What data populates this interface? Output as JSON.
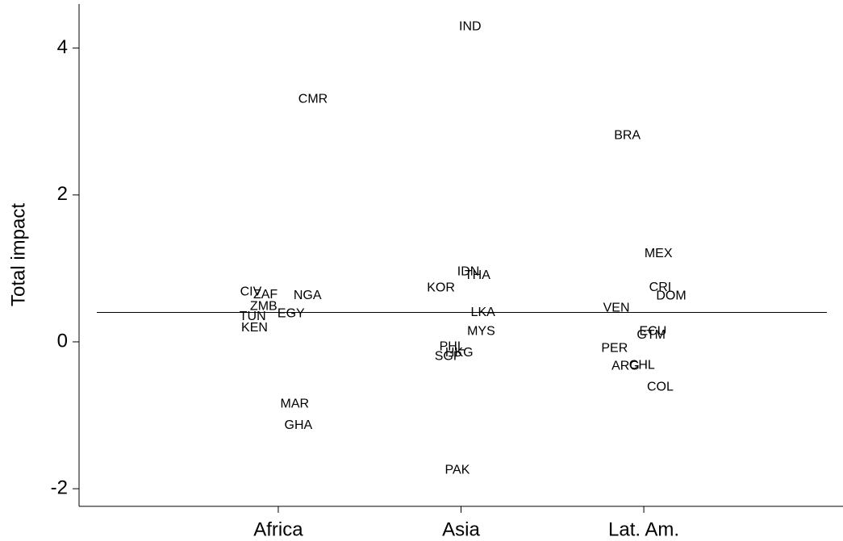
{
  "chart_data": {
    "type": "scatter",
    "ylabel": "Total impact",
    "labels": [
      "CMR",
      "CIV",
      "ZAF",
      "NGA",
      "ZMB",
      "EGY",
      "TUN",
      "KEN",
      "MAR",
      "GHA",
      "IND",
      "IDN",
      "THA",
      "KOR",
      "LKA",
      "MYS",
      "PHL",
      "HKG",
      "SGP",
      "PAK",
      "BRA",
      "MEX",
      "CRI",
      "DOM",
      "VEN",
      "ECU",
      "GTM",
      "PER",
      "ARG",
      "CHL",
      "COL"
    ],
    "x": [
      1.19,
      0.85,
      0.93,
      1.16,
      0.92,
      1.07,
      0.86,
      0.87,
      1.09,
      1.11,
      2.05,
      2.04,
      2.09,
      1.89,
      2.12,
      2.11,
      1.95,
      1.99,
      1.93,
      1.98,
      2.91,
      3.08,
      3.09,
      3.15,
      2.85,
      3.05,
      3.04,
      2.84,
      2.9,
      2.99,
      3.09
    ],
    "y": [
      3.3,
      0.68,
      0.64,
      0.63,
      0.48,
      0.38,
      0.34,
      0.19,
      -0.85,
      -1.14,
      4.29,
      0.95,
      0.9,
      0.73,
      0.4,
      0.14,
      -0.07,
      -0.15,
      -0.2,
      -1.75,
      2.81,
      1.2,
      0.74,
      0.62,
      0.46,
      0.14,
      0.09,
      -0.09,
      -0.33,
      -0.32,
      -0.62
    ],
    "color": "#000000",
    "xlim": [
      -0.09,
      4.09
    ],
    "ylim": [
      -2.24,
      4.6
    ],
    "xticks": [
      {
        "value": 1,
        "label": "Africa"
      },
      {
        "value": 2,
        "label": "Asia"
      },
      {
        "value": 3,
        "label": "Lat. Am."
      }
    ],
    "yticks": [
      -2,
      0,
      2,
      4
    ],
    "hline": 0.4
  }
}
